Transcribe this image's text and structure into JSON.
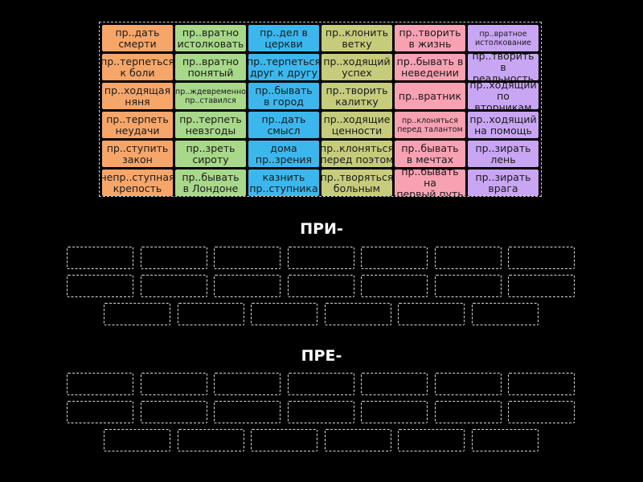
{
  "tiles": [
    [
      {
        "text": "пр..дать\nсмерти",
        "small": false
      },
      {
        "text": "пр..терпеться\nк боли",
        "small": false
      },
      {
        "text": "пр..ходящая\nняня",
        "small": false
      },
      {
        "text": "пр..терпеть\nнеудачи",
        "small": false
      },
      {
        "text": "пр..ступить\nзакон",
        "small": false
      },
      {
        "text": "непр..ступная\nкрепость",
        "small": false
      }
    ],
    [
      {
        "text": "пр..вратно\nистолковать",
        "small": false
      },
      {
        "text": "пр..вратно\nпонятый",
        "small": false
      },
      {
        "text": "пр..ждевременно\nпр..ставился",
        "small": true
      },
      {
        "text": "пр..терпеть\nневзгоды",
        "small": false
      },
      {
        "text": "пр..зреть\nсироту",
        "small": false
      },
      {
        "text": "пр..бывать\nв Лондоне",
        "small": false
      }
    ],
    [
      {
        "text": "пр..дел в\nцеркви",
        "small": false
      },
      {
        "text": "пр..терпеться\nдруг к другу",
        "small": false
      },
      {
        "text": "пр..бывать\nв город",
        "small": false
      },
      {
        "text": "пр..дать\nсмысл",
        "small": false
      },
      {
        "text": "дома\nпр..зрения",
        "small": false
      },
      {
        "text": "казнить\nпр..ступника",
        "small": false
      }
    ],
    [
      {
        "text": "пр..клонить\nветку",
        "small": false
      },
      {
        "text": "пр..ходящий\nуспех",
        "small": false
      },
      {
        "text": "пр..творить\nкалитку",
        "small": false
      },
      {
        "text": "пр..ходящие\nценности",
        "small": false
      },
      {
        "text": "пр..клоняться\nперед поэтом",
        "small": false
      },
      {
        "text": "пр..творяться\nбольным",
        "small": false
      }
    ],
    [
      {
        "text": "пр..творить\nв жизнь",
        "small": false
      },
      {
        "text": "пр..бывать в\nневедении",
        "small": false
      },
      {
        "text": "пр..вратник",
        "small": false
      },
      {
        "text": "пр..клоняться\nперед талантом",
        "small": true
      },
      {
        "text": "пр..бывать\nв мечтах",
        "small": false
      },
      {
        "text": "пр..бывать на\nпервый путь",
        "small": false
      }
    ],
    [
      {
        "text": "пр..вратное\nистолкование",
        "small": true
      },
      {
        "text": "пр..творить в\nреальность",
        "small": false
      },
      {
        "text": "пр..ходящий\nпо вторникам",
        "small": false
      },
      {
        "text": "пр..ходящий\nна помощь",
        "small": false
      },
      {
        "text": "пр..зирать\nлень",
        "small": false
      },
      {
        "text": "пр..зирать\nврага",
        "small": false
      }
    ]
  ],
  "groups": [
    {
      "title": "ПРИ-",
      "slots": 20
    },
    {
      "title": "ПРЕ-",
      "slots": 20
    }
  ]
}
